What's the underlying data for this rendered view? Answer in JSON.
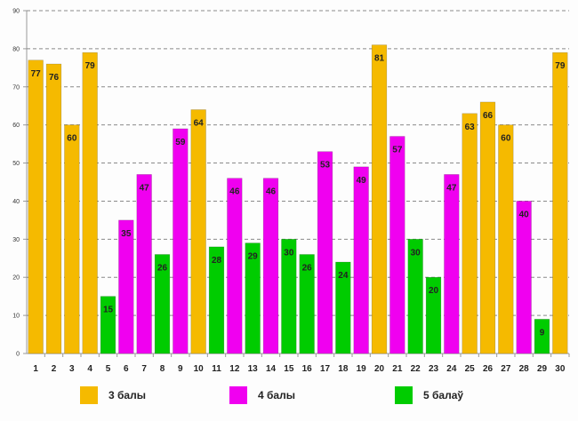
{
  "chart_data": {
    "type": "bar",
    "title": "",
    "xlabel": "",
    "ylabel": "",
    "ylim": [
      0,
      90
    ],
    "yticks": [
      0,
      10,
      20,
      30,
      40,
      50,
      60,
      70,
      80,
      90
    ],
    "grid": true,
    "categories": [
      "1",
      "2",
      "3",
      "4",
      "5",
      "6",
      "7",
      "8",
      "9",
      "10",
      "11",
      "12",
      "13",
      "14",
      "15",
      "16",
      "17",
      "18",
      "19",
      "20",
      "21",
      "22",
      "23",
      "24",
      "25",
      "26",
      "27",
      "28",
      "29",
      "30"
    ],
    "values": [
      77,
      76,
      60,
      79,
      15,
      35,
      47,
      26,
      59,
      64,
      28,
      46,
      29,
      46,
      30,
      26,
      53,
      24,
      49,
      81,
      57,
      30,
      20,
      47,
      63,
      66,
      60,
      40,
      9,
      79
    ],
    "groups": [
      "3",
      "3",
      "3",
      "3",
      "5",
      "4",
      "4",
      "5",
      "4",
      "3",
      "5",
      "4",
      "5",
      "4",
      "5",
      "5",
      "4",
      "5",
      "4",
      "3",
      "4",
      "5",
      "5",
      "4",
      "3",
      "3",
      "3",
      "4",
      "5",
      "3"
    ],
    "series": [
      {
        "key": "3",
        "name": "3 балы",
        "color": "#F5BA00"
      },
      {
        "key": "4",
        "name": "4 балы",
        "color": "#F000F0"
      },
      {
        "key": "5",
        "name": "5 балаў",
        "color": "#00CC00"
      }
    ],
    "legend_position": "bottom"
  }
}
